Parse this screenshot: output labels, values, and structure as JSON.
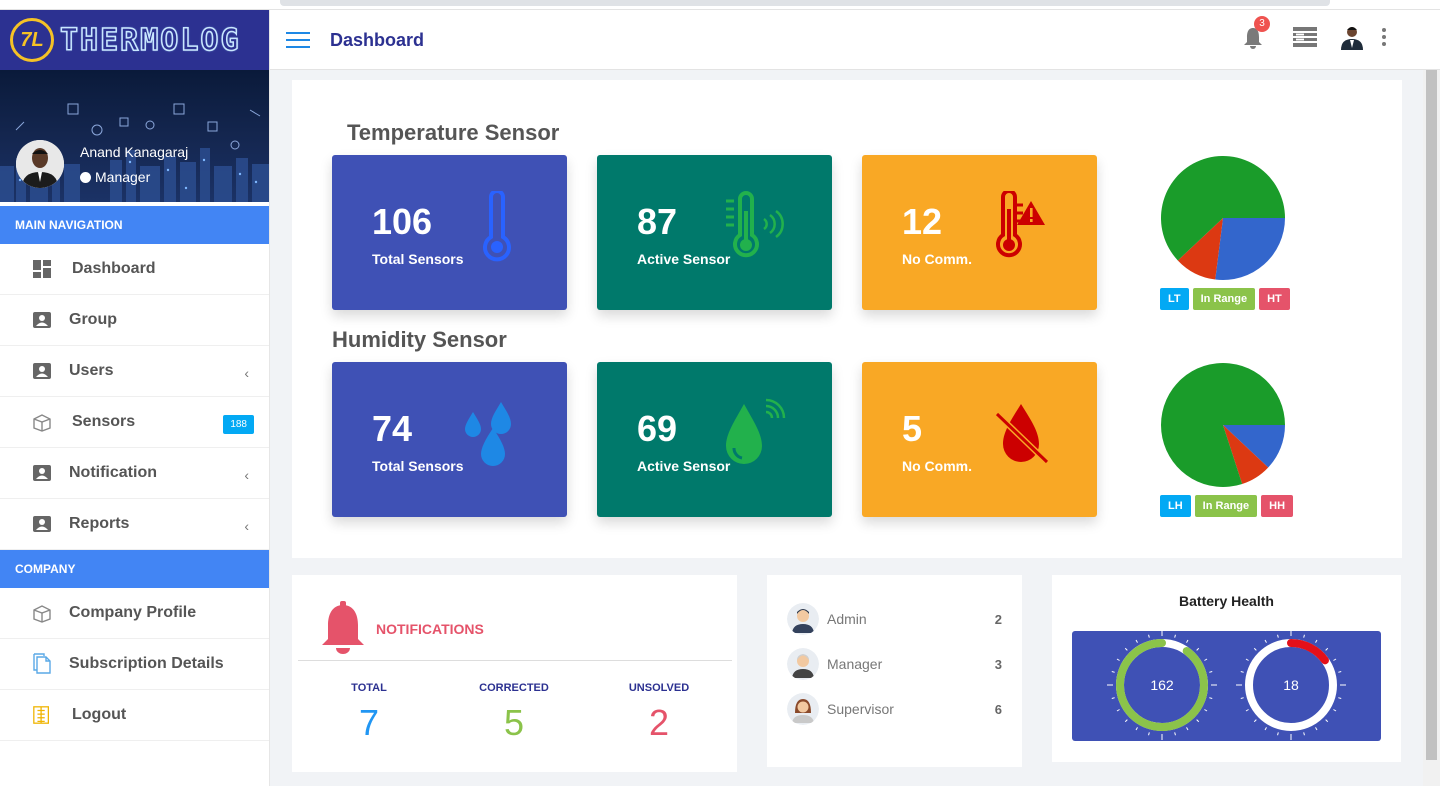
{
  "app": {
    "logo_mark": "7L",
    "logo_text": "THERMOLOG"
  },
  "header": {
    "title": "Dashboard",
    "notification_count": "3"
  },
  "profile": {
    "name": "Anand Kanagaraj",
    "role": "Manager"
  },
  "sidebar": {
    "section_main": "MAIN NAVIGATION",
    "main_items": [
      {
        "label": "Dashboard",
        "icon": "dashboard-icon"
      },
      {
        "label": "Group",
        "icon": "user-card-icon"
      },
      {
        "label": "Users",
        "icon": "user-card-icon",
        "chevron": "‹"
      },
      {
        "label": "Sensors",
        "icon": "box-icon",
        "badge": "188"
      },
      {
        "label": "Notification",
        "icon": "user-card-icon",
        "chevron": "‹"
      },
      {
        "label": "Reports",
        "icon": "user-card-icon",
        "chevron": "‹"
      }
    ],
    "section_company": "COMPANY",
    "company_items": [
      {
        "label": "Company Profile",
        "icon": "box-icon"
      },
      {
        "label": "Subscription Details",
        "icon": "document-icon"
      },
      {
        "label": "Logout",
        "icon": "logout-icon"
      }
    ]
  },
  "temperature": {
    "title": "Temperature Sensor",
    "cards": [
      {
        "value": "106",
        "label": "Total Sensors",
        "icon": "thermometer-icon"
      },
      {
        "value": "87",
        "label": "Active Sensor",
        "icon": "thermometer-signal-icon"
      },
      {
        "value": "12",
        "label": "No Comm.",
        "icon": "thermometer-warning-icon"
      }
    ],
    "legend": [
      "LT",
      "In Range",
      "HT"
    ]
  },
  "humidity": {
    "title": "Humidity Sensor",
    "cards": [
      {
        "value": "74",
        "label": "Total Sensors",
        "icon": "water-drops-icon"
      },
      {
        "value": "69",
        "label": "Active Sensor",
        "icon": "water-drop-signal-icon"
      },
      {
        "value": "5",
        "label": "No Comm.",
        "icon": "water-drop-off-icon"
      }
    ],
    "legend": [
      "LH",
      "In Range",
      "HH"
    ]
  },
  "chart_data": [
    {
      "type": "pie",
      "categories": [
        "In Range",
        "LT",
        "HT"
      ],
      "values": [
        62,
        27,
        11
      ],
      "colors": [
        "#1a9c2a",
        "#3366cc",
        "#dc3912"
      ]
    },
    {
      "type": "pie",
      "categories": [
        "In Range",
        "LH",
        "HH"
      ],
      "values": [
        80,
        12,
        8
      ],
      "colors": [
        "#1a9c2a",
        "#3366cc",
        "#dc3912"
      ]
    }
  ],
  "notifications": {
    "title": "NOTIFICATIONS",
    "columns": [
      {
        "label": "TOTAL",
        "value": "7",
        "color": "#2196f3"
      },
      {
        "label": "CORRECTED",
        "value": "5",
        "color": "#8bc34a"
      },
      {
        "label": "UNSOLVED",
        "value": "2",
        "color": "#e5536a"
      }
    ]
  },
  "roles": [
    {
      "name": "Admin",
      "count": "2"
    },
    {
      "name": "Manager",
      "count": "3"
    },
    {
      "name": "Supervisor",
      "count": "6"
    }
  ],
  "battery": {
    "title": "Battery Health",
    "gauges": [
      {
        "value": "162",
        "fraction": 0.9,
        "color": "#8bc34a"
      },
      {
        "value": "18",
        "fraction": 0.15,
        "color": "#e3101a"
      }
    ]
  }
}
